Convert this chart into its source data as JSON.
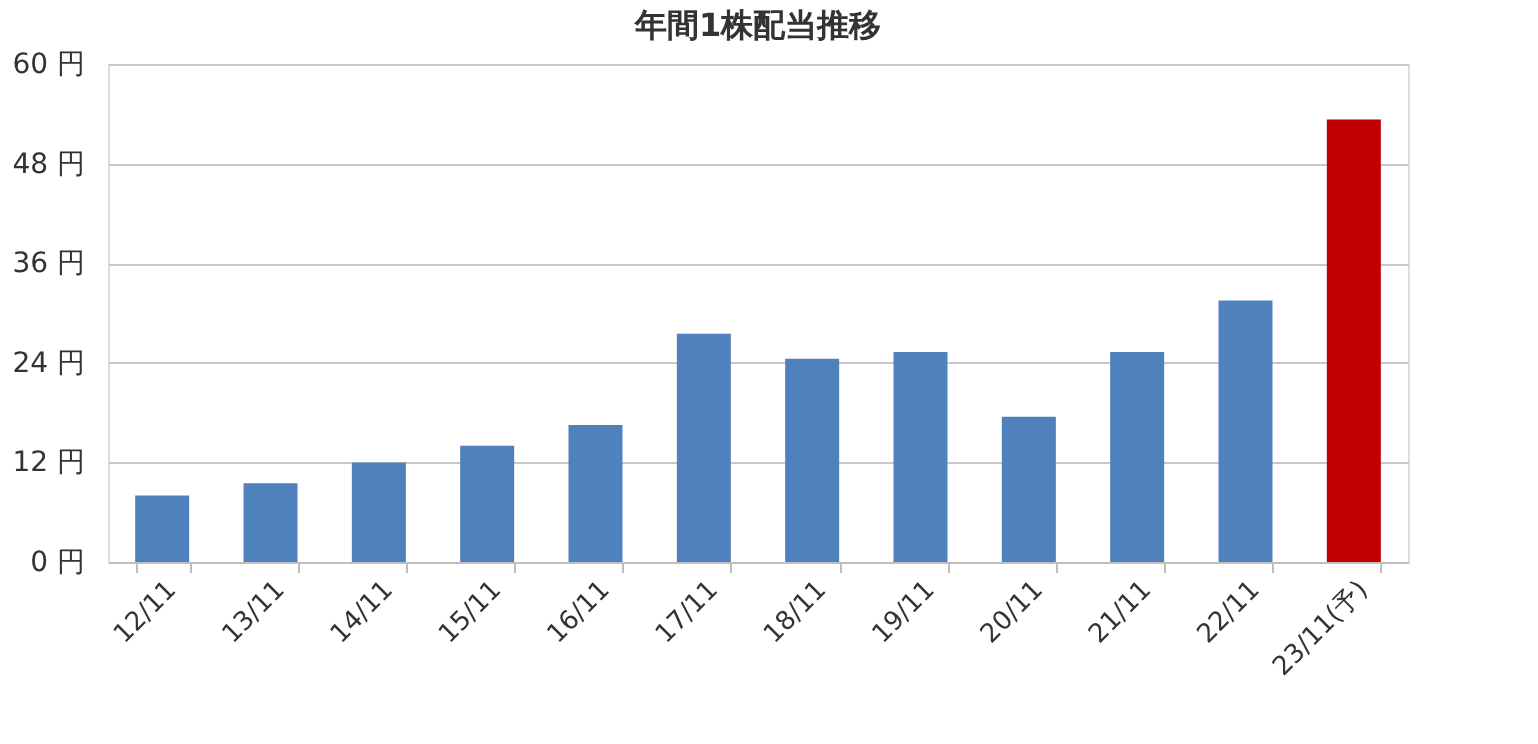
{
  "chart_data": {
    "type": "bar",
    "title": "年間1株配当推移",
    "categories": [
      "12/11",
      "13/11",
      "14/11",
      "15/11",
      "16/11",
      "17/11",
      "18/11",
      "19/11",
      "20/11",
      "21/11",
      "22/11",
      "23/11(予)"
    ],
    "values": [
      8,
      9.5,
      12,
      14,
      16.5,
      27.5,
      24.5,
      25.3,
      17.5,
      25.3,
      31.5,
      53.3
    ],
    "colors": [
      "#4f81bd",
      "#4f81bd",
      "#4f81bd",
      "#4f81bd",
      "#4f81bd",
      "#4f81bd",
      "#4f81bd",
      "#4f81bd",
      "#4f81bd",
      "#4f81bd",
      "#4f81bd",
      "#c00000"
    ],
    "ylim": [
      0,
      60
    ],
    "yticks": [
      {
        "value": 0,
        "label": "0 円"
      },
      {
        "value": 12,
        "label": "12 円"
      },
      {
        "value": 24,
        "label": "24 円"
      },
      {
        "value": 36,
        "label": "36 円"
      },
      {
        "value": 48,
        "label": "48 円"
      },
      {
        "value": 60,
        "label": "60 円"
      }
    ],
    "grid": "y",
    "legend": false
  }
}
